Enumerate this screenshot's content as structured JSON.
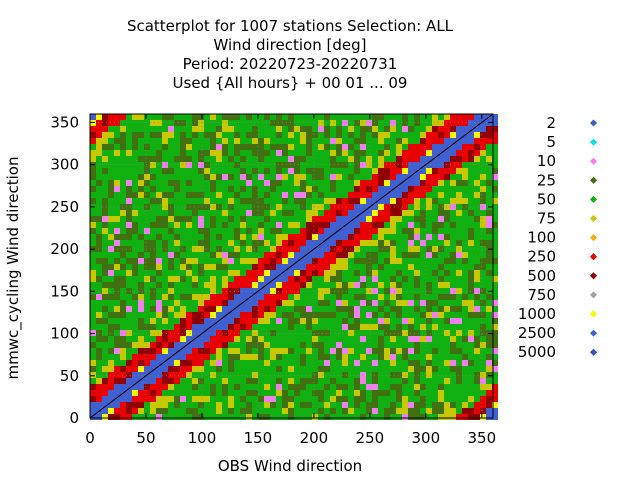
{
  "chart_data": {
    "type": "heatmap",
    "title_lines": [
      "Scatterplot for 1007 stations Selection: ALL",
      "Wind direction [deg]",
      "Period: 20220723-20220731",
      "Used {All hours} + 00 01 ... 09"
    ],
    "xlabel": "OBS Wind direction",
    "ylabel": "mmwc_cycling Wind direction",
    "xlim": [
      0,
      360
    ],
    "ylim": [
      0,
      360
    ],
    "xticks": [
      0,
      50,
      100,
      150,
      200,
      250,
      300,
      350
    ],
    "yticks": [
      0,
      50,
      100,
      150,
      200,
      250,
      300,
      350
    ],
    "grid": true,
    "legend_position": "right",
    "legend": [
      {
        "label": "2",
        "color": "#4060c0"
      },
      {
        "label": "5",
        "color": "#00e0e0"
      },
      {
        "label": "10",
        "color": "#f080f0"
      },
      {
        "label": "25",
        "color": "#407010"
      },
      {
        "label": "50",
        "color": "#10b010"
      },
      {
        "label": "75",
        "color": "#c8c800"
      },
      {
        "label": "100",
        "color": "#f0b000"
      },
      {
        "label": "250",
        "color": "#e80000"
      },
      {
        "label": "500",
        "color": "#900000"
      },
      {
        "label": "750",
        "color": "#a0a0a0"
      },
      {
        "label": "1000",
        "color": "#f8f800"
      },
      {
        "label": "2500",
        "color": "#4060d0"
      },
      {
        "label": "5000",
        "color": "#3050c8"
      }
    ],
    "diagonal_line": true
  }
}
